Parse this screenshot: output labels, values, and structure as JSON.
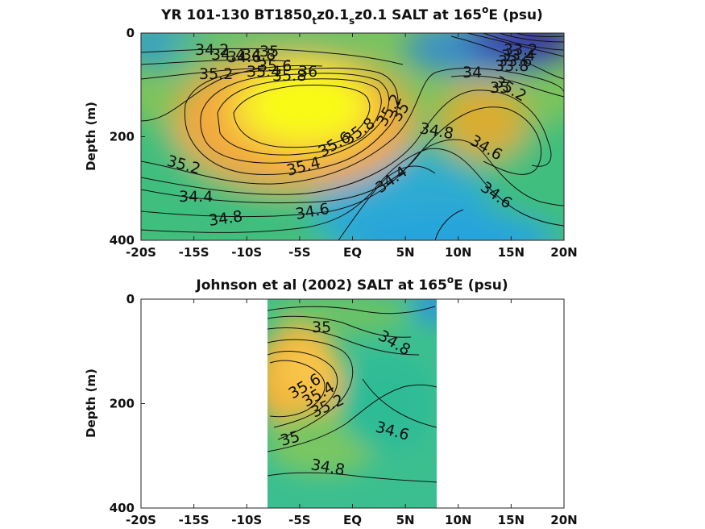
{
  "chart_data": [
    {
      "type": "contour",
      "title": "YR 101-130 BT1850_tz0.1_sz0.1 SALT at 165°E (psu)",
      "title_parts": {
        "pre": "YR 101-130 BT1850",
        "sub1": "t",
        "mid": "z0.1",
        "sub2": "s",
        "post": "z0.1 SALT at 165",
        "sup": "o",
        "end": "E (psu)"
      },
      "ylabel": "Depth (m)",
      "x_ticks": [
        "-20S",
        "-15S",
        "-10S",
        "-5S",
        "EQ",
        "5N",
        "10N",
        "15N",
        "20N"
      ],
      "y_ticks": [
        "0",
        "200",
        "400"
      ],
      "xlim": [
        -20,
        20
      ],
      "ylim": [
        0,
        400
      ],
      "contour_labels": [
        "34.2",
        "34.4",
        "34.6",
        "34.8",
        "35",
        "35.2",
        "35.4",
        "35.6",
        "35.8",
        "36",
        "33.2",
        "33.4",
        "33.6",
        "33.8",
        "34",
        "35.2",
        "35",
        "34.8",
        "34.6",
        "34.4",
        "35.8",
        "35.6",
        "35.4",
        "35.2",
        "35",
        "34.8",
        "34.6",
        "34.4",
        "35.2",
        "34.6"
      ]
    },
    {
      "type": "contour",
      "title": "Johnson et al (2002) SALT at 165°E (psu)",
      "title_parts": {
        "pre": "Johnson et al (2002) SALT at 165",
        "sup": "o",
        "end": "E (psu)"
      },
      "ylabel": "Depth (m)",
      "x_ticks": [
        "-20S",
        "-15S",
        "-10S",
        "-5S",
        "EQ",
        "5N",
        "10N",
        "15N",
        "20N"
      ],
      "y_ticks": [
        "0",
        "200",
        "400"
      ],
      "xlim": [
        -20,
        20
      ],
      "ylim": [
        0,
        400
      ],
      "data_extent_lat": [
        -8,
        8
      ],
      "contour_labels": [
        "35",
        "34.8",
        "35.6",
        "35.4",
        "35.2",
        "35",
        "34.6",
        "34.8"
      ]
    }
  ]
}
